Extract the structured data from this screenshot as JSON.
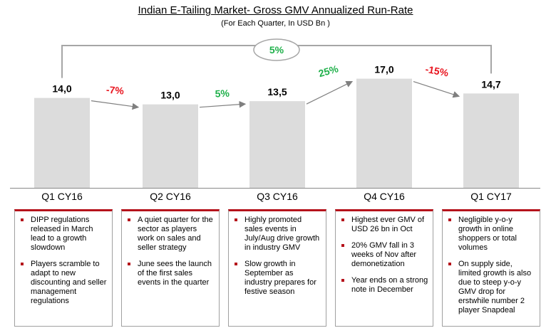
{
  "title": "Indian E-Tailing Market- Gross GMV Annualized Run-Rate",
  "subtitle": "(For Each Quarter, In USD Bn )",
  "chart_data": {
    "type": "bar",
    "categories": [
      "Q1 CY16",
      "Q2 CY16",
      "Q3 CY16",
      "Q4 CY16",
      "Q1 CY17"
    ],
    "values": [
      14.0,
      13.0,
      13.5,
      17.0,
      14.7
    ],
    "value_labels": [
      "14,0",
      "13,0",
      "13,5",
      "17,0",
      "14,7"
    ],
    "growth_labels": [
      "-7%",
      "5%",
      "25%",
      "-15%"
    ],
    "growth_colors": [
      "#e8141e",
      "#1fb04a",
      "#1fb04a",
      "#e8141e"
    ],
    "overall_growth": "5%",
    "overall_color": "#1fb04a",
    "bar_color": "#dcdcdc",
    "ylim": [
      0,
      19.5
    ],
    "grid": false
  },
  "notes": [
    {
      "items": [
        "DIPP regulations released in March lead to a growth slowdown",
        "Players scramble to adapt to new discounting and seller management regulations"
      ]
    },
    {
      "items": [
        "A quiet quarter for the sector as players work on sales and seller strategy",
        "June sees the launch of the first sales events in the quarter"
      ]
    },
    {
      "items": [
        "Highly promoted sales events in July/Aug drive growth in industry GMV",
        "Slow growth in September as industry prepares for festive season"
      ]
    },
    {
      "items": [
        "Highest ever GMV of USD 26 bn in Oct",
        "20% GMV fall in 3 weeks of Nov after demonetization",
        "Year ends on a strong note in December"
      ]
    },
    {
      "items": [
        "Negligible y-o-y growth in online shoppers or total volumes",
        "On supply side, limited growth is also due to steep y-o-y GMV drop for erstwhile number 2 player Snapdeal"
      ]
    }
  ]
}
